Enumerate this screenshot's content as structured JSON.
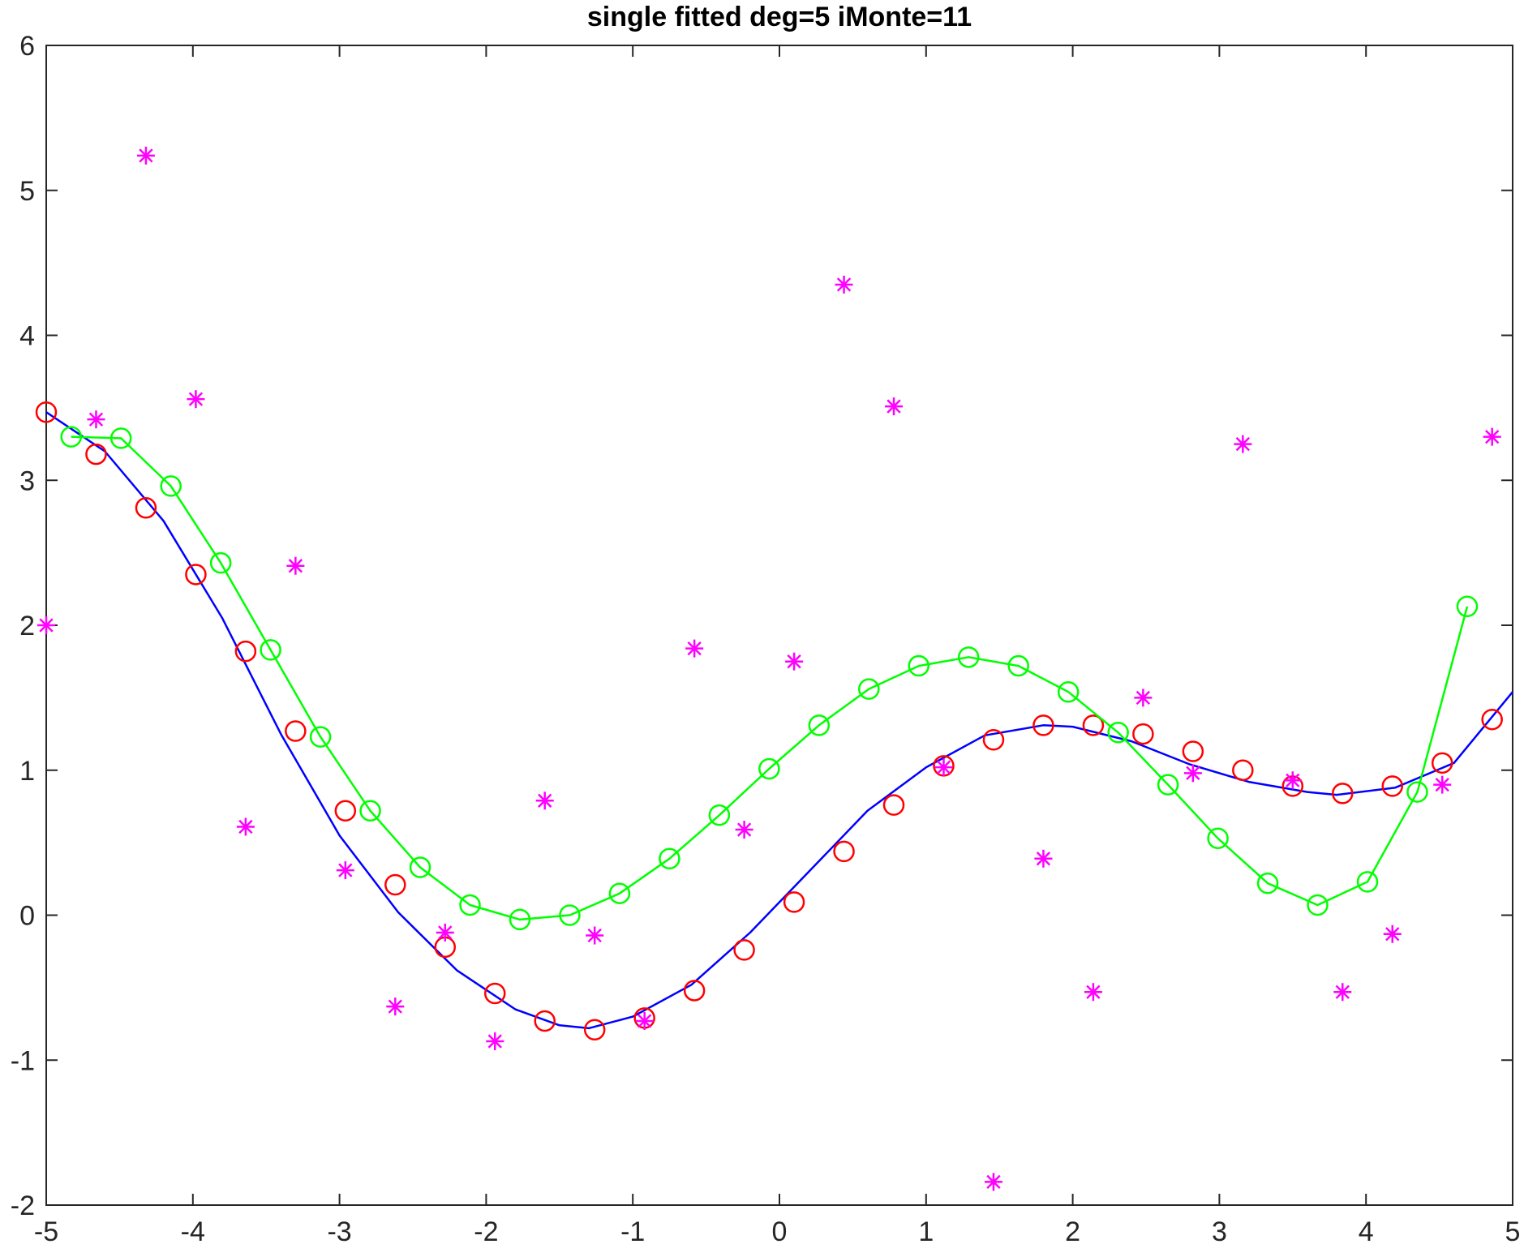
{
  "chart_data": {
    "type": "scatter",
    "title": "single fitted deg=5 iMonte=11",
    "xlabel": "",
    "ylabel": "",
    "xlim": [
      -5,
      5
    ],
    "ylim": [
      -2,
      6
    ],
    "xticks": [
      -5,
      -4,
      -3,
      -2,
      -1,
      0,
      1,
      2,
      3,
      4,
      5
    ],
    "yticks": [
      -2,
      -1,
      0,
      1,
      2,
      3,
      4,
      5,
      6
    ],
    "grid": false,
    "legend": "none",
    "colors": {
      "curve": "#0000ff",
      "red_markers": "#ff0000",
      "green_series": "#00ff00",
      "noisy_samples": "#ff00ff",
      "axis": "#262626"
    },
    "series": [
      {
        "marker": "none",
        "style": "line",
        "color": "#0000ff",
        "x": [
          -5.0,
          -4.6,
          -4.2,
          -3.8,
          -3.4,
          -3.0,
          -2.6,
          -2.2,
          -1.8,
          -1.5,
          -1.3,
          -1.0,
          -0.6,
          -0.2,
          0.2,
          0.6,
          1.0,
          1.4,
          1.8,
          2.0,
          2.4,
          2.8,
          3.2,
          3.6,
          3.8,
          4.2,
          4.6,
          5.0
        ],
        "y": [
          3.47,
          3.2,
          2.72,
          2.05,
          1.25,
          0.55,
          0.02,
          -0.38,
          -0.65,
          -0.76,
          -0.78,
          -0.7,
          -0.48,
          -0.12,
          0.3,
          0.72,
          1.02,
          1.24,
          1.31,
          1.3,
          1.2,
          1.04,
          0.92,
          0.85,
          0.83,
          0.88,
          1.05,
          1.54
        ]
      },
      {
        "marker": "circle",
        "style": "markers",
        "color": "#ff0000",
        "x": [
          -5.0,
          -4.66,
          -4.32,
          -3.98,
          -3.64,
          -3.3,
          -2.96,
          -2.62,
          -2.28,
          -1.94,
          -1.6,
          -1.26,
          -0.92,
          -0.58,
          -0.24,
          0.1,
          0.44,
          0.78,
          1.12,
          1.46,
          1.8,
          2.14,
          2.48,
          2.82,
          3.16,
          3.5,
          3.84,
          4.18,
          4.52,
          4.86
        ],
        "y": [
          3.47,
          3.18,
          2.81,
          2.35,
          1.82,
          1.27,
          0.72,
          0.21,
          -0.22,
          -0.54,
          -0.73,
          -0.79,
          -0.71,
          -0.52,
          -0.24,
          0.09,
          0.44,
          0.76,
          1.03,
          1.21,
          1.31,
          1.31,
          1.25,
          1.13,
          1.0,
          0.89,
          0.84,
          0.89,
          1.05,
          1.35
        ]
      },
      {
        "marker": "circle",
        "style": "line+markers",
        "color": "#00ff00",
        "x": [
          -4.83,
          -4.49,
          -4.15,
          -3.81,
          -3.47,
          -3.13,
          -2.79,
          -2.45,
          -2.11,
          -1.77,
          -1.43,
          -1.09,
          -0.75,
          -0.41,
          -0.07,
          0.27,
          0.61,
          0.95,
          1.29,
          1.63,
          1.97,
          2.31,
          2.65,
          2.99,
          3.33,
          3.67,
          4.01,
          4.35,
          4.69
        ],
        "y": [
          3.3,
          3.29,
          2.96,
          2.43,
          1.83,
          1.23,
          0.72,
          0.33,
          0.07,
          -0.03,
          0.0,
          0.15,
          0.39,
          0.69,
          1.01,
          1.31,
          1.56,
          1.72,
          1.78,
          1.72,
          1.54,
          1.26,
          0.9,
          0.53,
          0.22,
          0.07,
          0.23,
          0.85,
          2.13
        ]
      },
      {
        "marker": "asterisk",
        "style": "markers",
        "color": "#ff00ff",
        "x": [
          -5.0,
          -4.66,
          -4.32,
          -3.98,
          -3.64,
          -3.3,
          -2.96,
          -2.62,
          -2.28,
          -1.94,
          -1.6,
          -1.26,
          -0.92,
          -0.58,
          -0.24,
          0.1,
          0.44,
          0.78,
          1.12,
          1.46,
          1.8,
          2.14,
          2.48,
          2.82,
          3.16,
          3.5,
          3.84,
          4.18,
          4.52,
          4.86
        ],
        "y": [
          2.0,
          3.42,
          5.24,
          3.56,
          0.61,
          2.41,
          0.31,
          -0.63,
          -0.12,
          -0.87,
          0.79,
          -0.14,
          -0.73,
          1.84,
          0.59,
          1.75,
          4.35,
          3.51,
          1.02,
          -1.84,
          0.39,
          -0.53,
          1.5,
          0.98,
          3.25,
          0.93,
          -0.53,
          -0.13,
          0.9,
          3.3
        ]
      }
    ]
  }
}
